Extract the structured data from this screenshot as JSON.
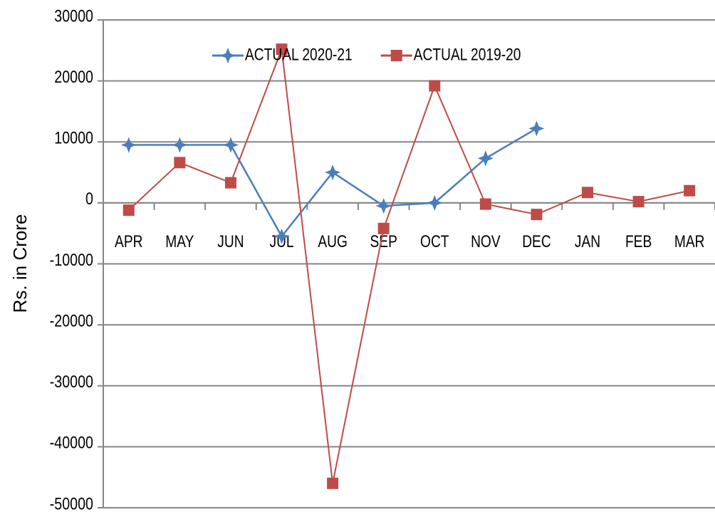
{
  "chart_data": {
    "type": "line",
    "y_label": "Rs. in Crore",
    "categories": [
      "APR",
      "MAY",
      "JUN",
      "JUL",
      "AUG",
      "SEP",
      "OCT",
      "NOV",
      "DEC",
      "JAN",
      "FEB",
      "MAR"
    ],
    "series": [
      {
        "name": "ACTUAL 2020-21",
        "color": "#4a7ebb",
        "marker": "star",
        "values": [
          9500,
          9500,
          9500,
          -5500,
          5000,
          -500,
          0,
          7300,
          12200,
          null,
          null,
          null
        ]
      },
      {
        "name": "ACTUAL 2019-20",
        "color": "#be4b48",
        "marker": "square",
        "values": [
          -1200,
          6600,
          3300,
          25200,
          -46000,
          -4200,
          19200,
          -200,
          -1900,
          1700,
          200,
          2000
        ]
      }
    ],
    "ylim": [
      -50000,
      30000
    ],
    "yticks": [
      -50000,
      -40000,
      -30000,
      -20000,
      -10000,
      0,
      10000,
      20000,
      30000
    ],
    "grid": true,
    "legend": "top"
  }
}
